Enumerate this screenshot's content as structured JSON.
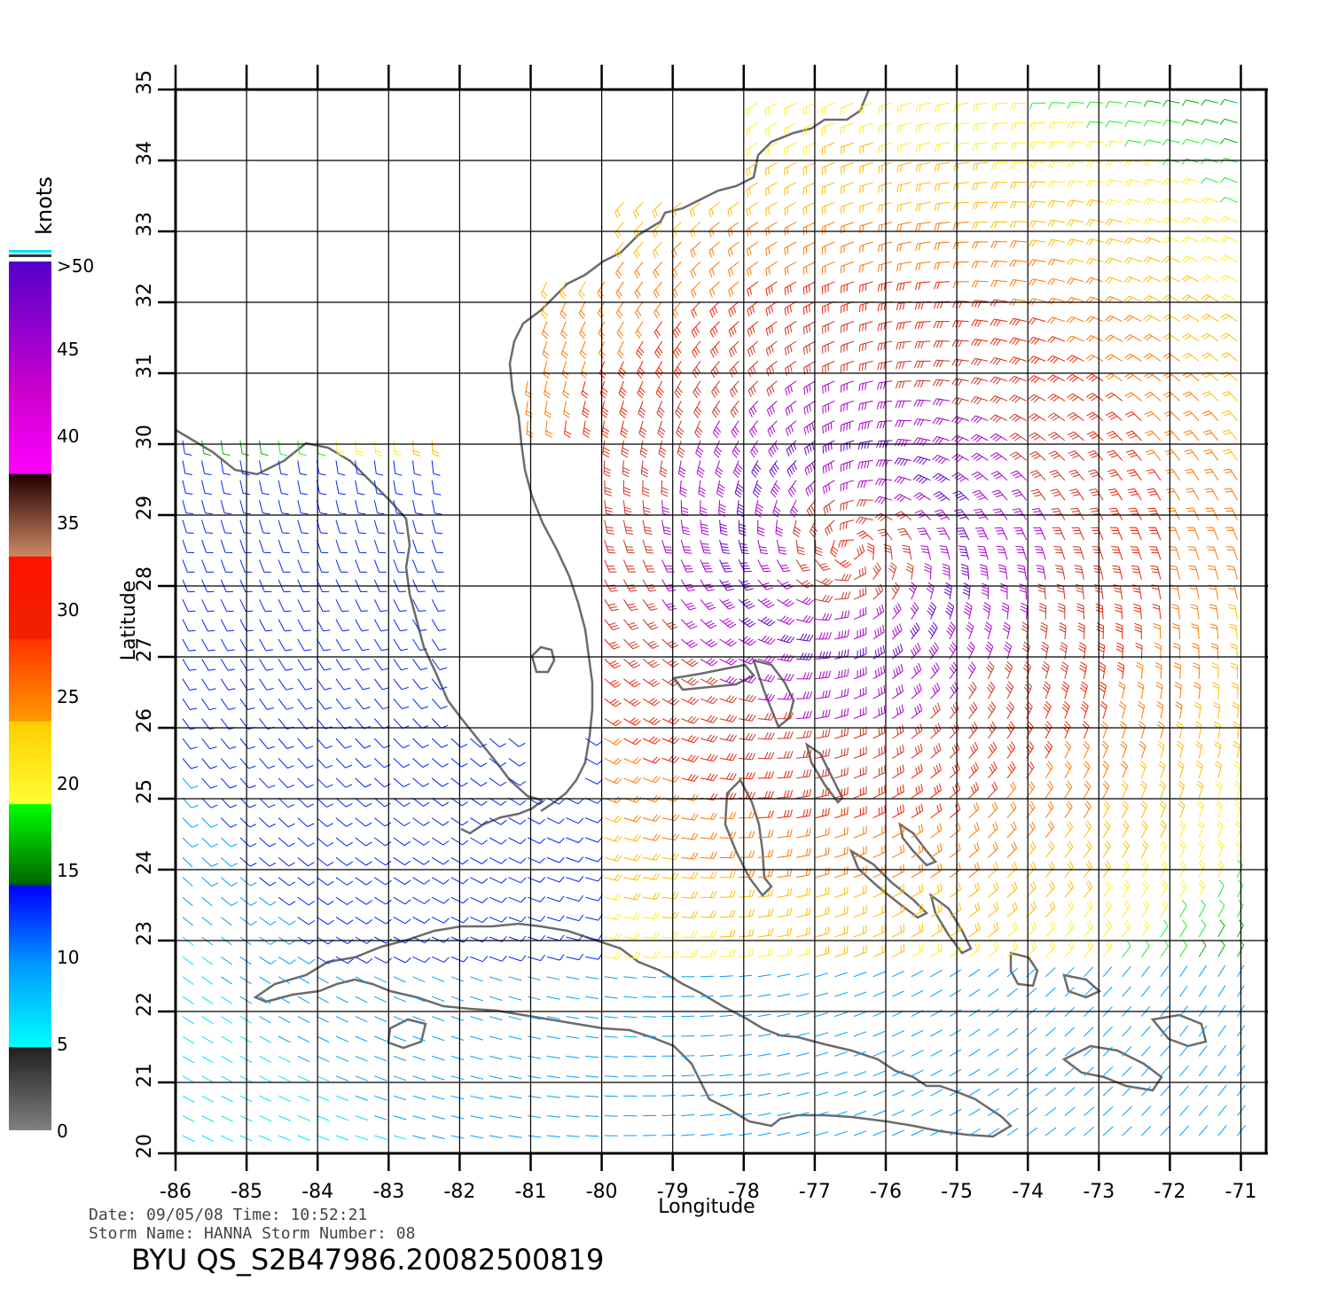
{
  "map": {
    "lon_range": [
      -86,
      -70.7
    ],
    "lat_range": [
      20,
      35
    ],
    "lon_ticks": [
      "-86",
      "-85",
      "-84",
      "-83",
      "-82",
      "-81",
      "-80",
      "-79",
      "-78",
      "-77",
      "-76",
      "-75",
      "-74",
      "-73",
      "-72",
      "-71"
    ],
    "lat_ticks": [
      "20",
      "21",
      "22",
      "23",
      "24",
      "25",
      "26",
      "27",
      "28",
      "29",
      "30",
      "31",
      "32",
      "33",
      "34",
      "35"
    ],
    "xlabel": "Longitude",
    "ylabel": "Latitude",
    "land_color": "#6b6b6b",
    "grid_color": "#000000",
    "storm_center": {
      "lon": -76.5,
      "lat": 28.5
    }
  },
  "legend": {
    "title": "knots",
    "labels": [
      "0",
      "5",
      "10",
      "15",
      "20",
      "25",
      "30",
      "35",
      "40",
      "45",
      ">50"
    ],
    "bands": [
      {
        "range": "0-5",
        "colors": [
          "#7f7f7f",
          "#222222"
        ]
      },
      {
        "range": "5-10",
        "colors": [
          "#00ffff",
          "#0099ff"
        ]
      },
      {
        "range": "10-15",
        "colors": [
          "#0088ff",
          "#0000ff"
        ]
      },
      {
        "range": "15-20",
        "colors": [
          "#006600",
          "#00ff00"
        ]
      },
      {
        "range": "20-25",
        "colors": [
          "#ffff33",
          "#ffcc00"
        ]
      },
      {
        "range": "25-30",
        "colors": [
          "#ff8800",
          "#ff4400"
        ]
      },
      {
        "range": "30-35",
        "colors": [
          "#ee3300",
          "#ff1100"
        ]
      },
      {
        "range": "35-40",
        "colors": [
          "#cc8866",
          "#330000"
        ]
      },
      {
        "range": "40-45",
        "colors": [
          "#ff00ff",
          "#cc00cc"
        ]
      },
      {
        "range": "45-50",
        "colors": [
          "#bb00cc",
          "#6600cc"
        ]
      }
    ]
  },
  "footer": {
    "date_line": "Date: 09/05/08   Time: 10:52:21",
    "storm_line": "Storm  Name: HANNA   Storm  Number: 08",
    "product_id": "BYU  QS_S2B47986.20082500819"
  }
}
